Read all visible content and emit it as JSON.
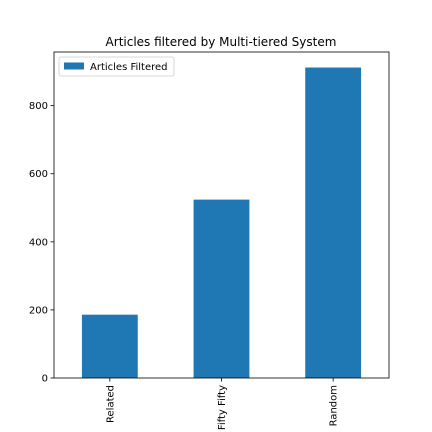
{
  "chart_data": {
    "type": "bar",
    "title": "Articles filtered by Multi-tiered System",
    "categories": [
      "Related",
      "Fifty Fifty",
      "Random"
    ],
    "series": [
      {
        "name": "Articles Filtered",
        "values": [
          186,
          524,
          912
        ],
        "color": "#1f77b4"
      }
    ],
    "xlabel": "",
    "ylabel": "",
    "ylim": [
      0,
      957.6
    ],
    "yticks": [
      0,
      200,
      400,
      600,
      800
    ],
    "grid": false,
    "legend_position": "top-left"
  }
}
